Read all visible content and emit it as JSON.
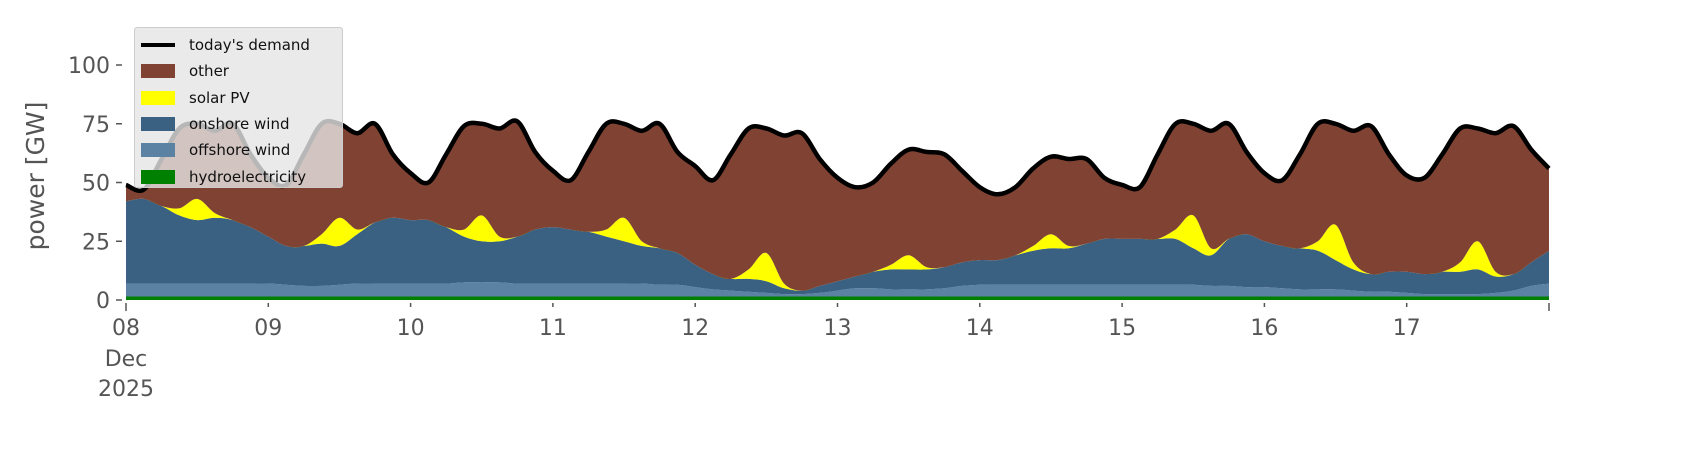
{
  "chart_data": {
    "type": "area",
    "title": "",
    "xlabel": "",
    "ylabel": "power [GW]",
    "ylim": [
      0,
      120
    ],
    "yticks": [
      0,
      25,
      50,
      75,
      100
    ],
    "start": "2025-12-08 00:00",
    "step_hours": 3,
    "xticks": [
      {
        "label": "08",
        "sub": [
          "Dec",
          "2025"
        ],
        "day": 0
      },
      {
        "label": "09",
        "day": 1
      },
      {
        "label": "10",
        "day": 2
      },
      {
        "label": "11",
        "day": 3
      },
      {
        "label": "12",
        "day": 4
      },
      {
        "label": "13",
        "day": 5
      },
      {
        "label": "14",
        "day": 6
      },
      {
        "label": "15",
        "day": 7
      },
      {
        "label": "16",
        "day": 8
      },
      {
        "label": "17",
        "day": 9
      }
    ],
    "xrange_days": [
      0,
      10
    ],
    "legend_position": "upper-left",
    "demand": {
      "name": "today's demand",
      "color": "#000000",
      "values": [
        49,
        47,
        60,
        73,
        75,
        72,
        75,
        62,
        52,
        49,
        62,
        75,
        75,
        71,
        75,
        62,
        54,
        50,
        62,
        74,
        75,
        73,
        76,
        63,
        55,
        51,
        63,
        75,
        75,
        72,
        75,
        63,
        57,
        51,
        62,
        73,
        73,
        70,
        71,
        60,
        52,
        48,
        50,
        58,
        64,
        63,
        62,
        55,
        48,
        45,
        48,
        56,
        61,
        60,
        60,
        52,
        49,
        48,
        62,
        75,
        75,
        72,
        75,
        63,
        54,
        51,
        62,
        75,
        75,
        72,
        74,
        62,
        53,
        52,
        62,
        73,
        73,
        71,
        74,
        64,
        56
      ]
    },
    "series": [
      {
        "name": "hydroelectricity",
        "color": "#008000",
        "values": [
          1.5,
          1.5,
          1.5,
          1.5,
          1.5,
          1.5,
          1.5,
          1.5,
          1.5,
          1.5,
          1.5,
          1.5,
          1.5,
          1.5,
          1.5,
          1.5,
          1.5,
          1.5,
          1.5,
          1.5,
          1.5,
          1.5,
          1.5,
          1.5,
          1.5,
          1.5,
          1.5,
          1.5,
          1.5,
          1.5,
          1.5,
          1.5,
          1.5,
          1.5,
          1.5,
          1.5,
          1.5,
          1.5,
          1.5,
          1.5,
          1.5,
          1.5,
          1.5,
          1.5,
          1.5,
          1.5,
          1.5,
          1.5,
          1.5,
          1.5,
          1.5,
          1.5,
          1.5,
          1.5,
          1.5,
          1.5,
          1.5,
          1.5,
          1.5,
          1.5,
          1.5,
          1.5,
          1.5,
          1.5,
          1.5,
          1.5,
          1.5,
          1.5,
          1.5,
          1.5,
          1.5,
          1.5,
          1.5,
          1.5,
          1.5,
          1.5,
          1.5,
          1.5,
          1.5,
          1.5,
          1.5
        ]
      },
      {
        "name": "offshore wind",
        "color": "#5b81a3",
        "values": [
          5.5,
          5.5,
          5.5,
          5.5,
          5.5,
          5.5,
          5.5,
          5.5,
          5.5,
          5,
          4.5,
          4.5,
          5,
          5.5,
          5.5,
          5.5,
          5.5,
          5.5,
          5.5,
          6,
          6,
          6,
          5.5,
          5.5,
          5.5,
          5.5,
          5.5,
          5.5,
          5.5,
          5.5,
          5,
          5,
          4,
          3,
          2.5,
          2,
          1.5,
          1,
          1,
          1.5,
          2.5,
          3.5,
          3.5,
          3,
          3,
          3,
          3.5,
          4.5,
          5,
          5,
          5,
          5,
          5,
          5,
          5,
          5,
          5,
          5,
          5,
          5,
          5,
          4.5,
          4.5,
          4,
          4,
          3.5,
          3,
          3,
          3,
          2.5,
          2,
          2,
          1.5,
          1,
          1,
          1,
          1,
          1.5,
          2.5,
          4.5,
          5.5
        ]
      },
      {
        "name": "onshore wind",
        "color": "#3b6182",
        "values": [
          35,
          36,
          33,
          29,
          27,
          28,
          27,
          24,
          20,
          16.5,
          17,
          18,
          16.5,
          21,
          26,
          28,
          27,
          27,
          24,
          19.5,
          17.5,
          17.5,
          20,
          23,
          24,
          23,
          22,
          20,
          18,
          16,
          15.5,
          13.5,
          9.5,
          6.5,
          5,
          5.5,
          5,
          2.5,
          1.5,
          3,
          4,
          5,
          7,
          8.5,
          8.5,
          8.5,
          9,
          10,
          10.5,
          10.5,
          12.5,
          14.5,
          15.5,
          15.5,
          17.5,
          19.5,
          19.5,
          19.5,
          19.5,
          19.5,
          15.5,
          13,
          20,
          22.5,
          19.5,
          18,
          17.5,
          16.5,
          12.5,
          9,
          7.5,
          8.5,
          9,
          8.5,
          9.5,
          9.5,
          10.5,
          7,
          7,
          10,
          14
        ]
      },
      {
        "name": "solar PV",
        "color": "#ffff00",
        "values": [
          0,
          0,
          0,
          3,
          9,
          2,
          0,
          0,
          0,
          0,
          0,
          4,
          12,
          2,
          0,
          0,
          0,
          0,
          0,
          3,
          11,
          2,
          0,
          0,
          0,
          0,
          0,
          3,
          10,
          2,
          0,
          0,
          0,
          0,
          0,
          4,
          12,
          2,
          0,
          0,
          0,
          0,
          0,
          2,
          6,
          1,
          0,
          0,
          0,
          0,
          0,
          2,
          6,
          1,
          0,
          0,
          0,
          0,
          0,
          4,
          14,
          3,
          0,
          0,
          0,
          0,
          0,
          4,
          15,
          3,
          0,
          0,
          0,
          0,
          0,
          4,
          12,
          2,
          0,
          0,
          0
        ]
      },
      {
        "name": "other",
        "color": "#804333",
        "values": [
          7,
          4,
          20,
          34,
          32,
          35,
          41,
          31,
          25,
          26,
          39,
          47,
          40,
          41,
          42,
          27,
          20,
          16,
          31,
          44,
          39,
          46,
          49,
          33,
          24,
          21,
          34,
          45,
          40,
          47,
          53,
          43,
          42,
          40,
          53,
          60,
          53,
          63,
          67,
          54,
          44,
          38,
          38,
          43,
          45,
          49,
          48,
          39,
          31,
          28,
          29,
          33,
          33,
          37,
          36,
          26,
          23,
          22,
          36,
          45,
          39,
          50,
          49,
          35,
          29,
          28,
          40,
          50,
          43,
          56,
          63,
          50,
          41,
          41,
          50,
          57,
          48,
          59,
          63,
          48,
          35
        ]
      }
    ]
  },
  "legend": [
    {
      "label": "today's demand",
      "color": "#000000",
      "kind": "line"
    },
    {
      "label": "other",
      "color": "#804333",
      "kind": "patch"
    },
    {
      "label": "solar PV",
      "color": "#ffff00",
      "kind": "patch"
    },
    {
      "label": "onshore wind",
      "color": "#3b6182",
      "kind": "patch"
    },
    {
      "label": "offshore wind",
      "color": "#5b81a3",
      "kind": "patch"
    },
    {
      "label": "hydroelectricity",
      "color": "#008000",
      "kind": "patch"
    }
  ]
}
